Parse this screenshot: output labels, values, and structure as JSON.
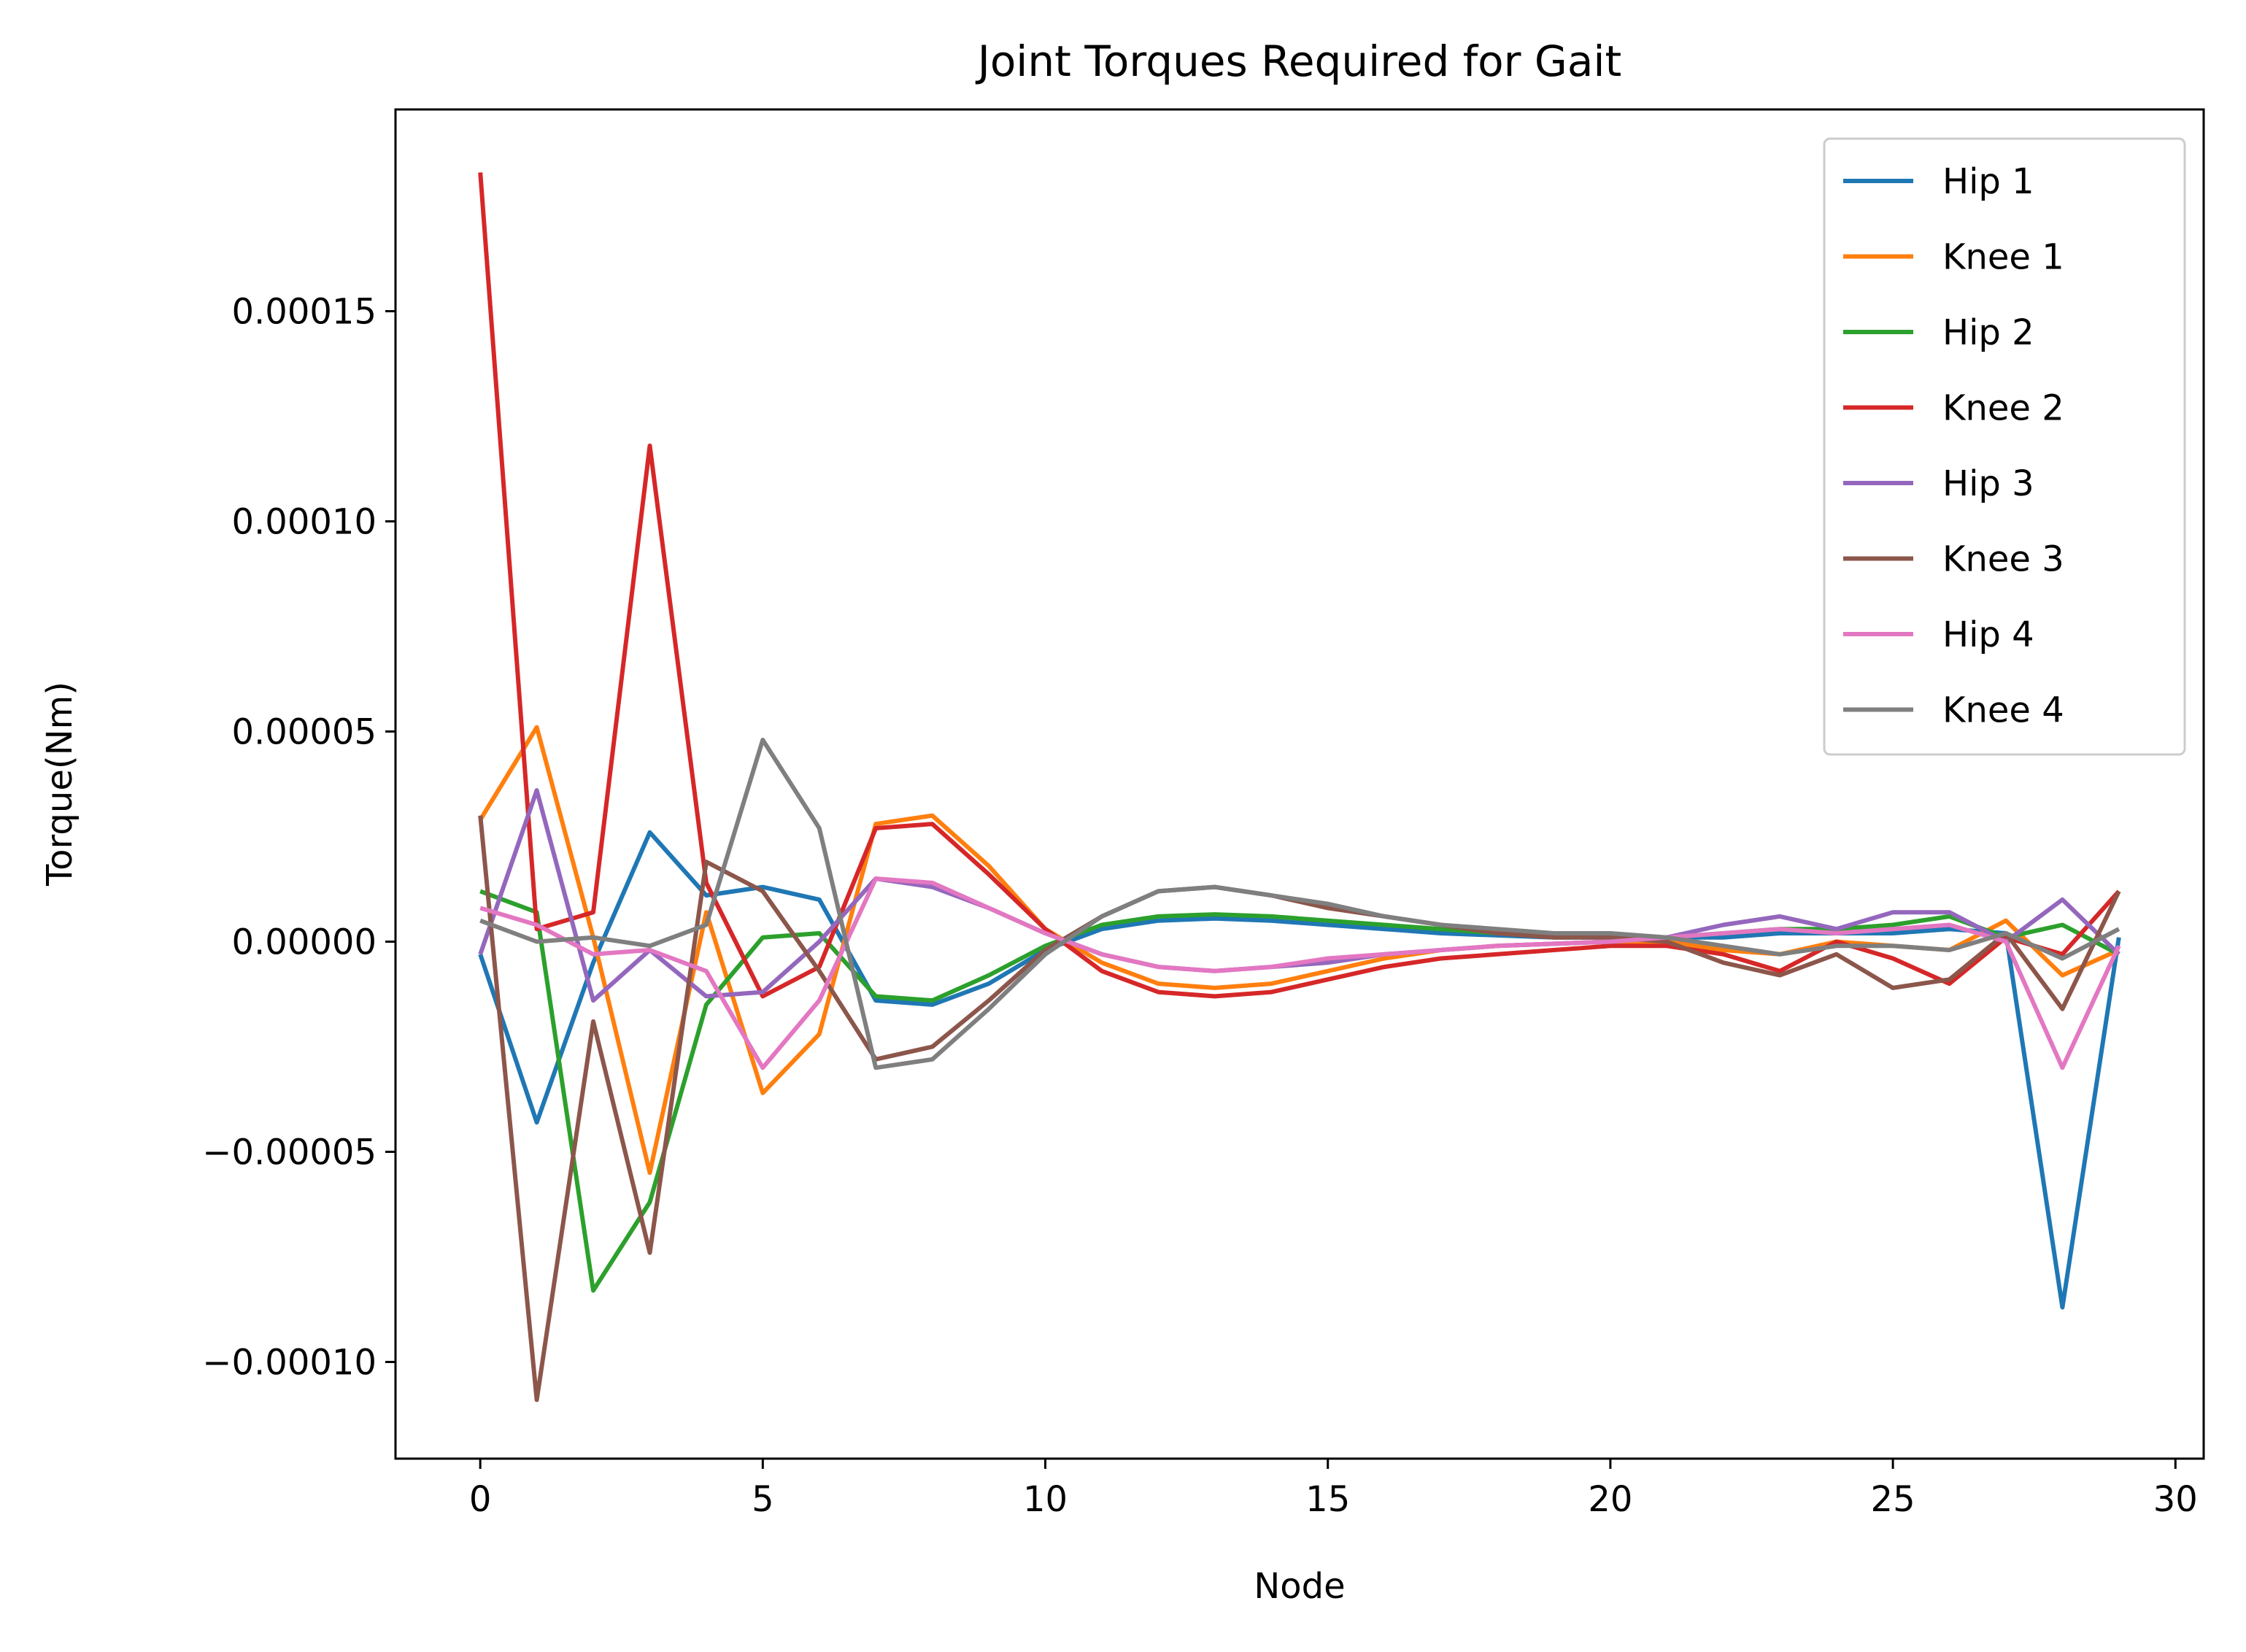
{
  "chart_data": {
    "type": "line",
    "title": "Joint Torques Required for Gait",
    "xlabel": "Node",
    "ylabel": "Torque(Nm)",
    "xlim": [
      -1.5,
      30.5
    ],
    "ylim": [
      -0.000123,
      0.000198
    ],
    "xticks": [
      0,
      5,
      10,
      15,
      20,
      25,
      30
    ],
    "xtick_labels": [
      "0",
      "5",
      "10",
      "15",
      "20",
      "25",
      "30"
    ],
    "yticks": [
      -0.0001,
      -5e-05,
      0,
      5e-05,
      0.0001,
      0.00015
    ],
    "ytick_labels": [
      "−0.00010",
      "−0.00005",
      "0.00000",
      "0.00005",
      "0.00010",
      "0.00015"
    ],
    "grid": false,
    "legend_position": "top-right",
    "x": [
      0,
      1,
      2,
      3,
      4,
      5,
      6,
      7,
      8,
      9,
      10,
      11,
      12,
      13,
      14,
      15,
      16,
      17,
      18,
      19,
      20,
      21,
      22,
      23,
      24,
      25,
      26,
      27,
      28,
      29
    ],
    "series": [
      {
        "name": "Hip 1",
        "color": "#1f77b4",
        "values": [
          -3e-06,
          -4.3e-05,
          -5e-06,
          2.6e-05,
          1.1e-05,
          1.3e-05,
          1e-05,
          -1.4e-05,
          -1.5e-05,
          -1e-05,
          -2e-06,
          3e-06,
          5e-06,
          5.5e-06,
          5e-06,
          4e-06,
          3e-06,
          2e-06,
          1.5e-06,
          1e-06,
          1e-06,
          1e-06,
          1e-06,
          2e-06,
          2e-06,
          2e-06,
          3e-06,
          2e-06,
          -8.7e-05,
          1e-06
        ]
      },
      {
        "name": "Knee 1",
        "color": "#ff7f0e",
        "values": [
          2.9e-05,
          5.1e-05,
          1e-06,
          -5.5e-05,
          7e-06,
          -3.6e-05,
          -2.2e-05,
          2.8e-05,
          3e-05,
          1.8e-05,
          3e-06,
          -5e-06,
          -1e-05,
          -1.1e-05,
          -1e-05,
          -7e-06,
          -4e-06,
          -2e-06,
          -1e-06,
          -5e-07,
          0,
          0,
          -2e-06,
          -3e-06,
          0,
          -1e-06,
          -2e-06,
          5e-06,
          -8e-06,
          -2e-06
        ]
      },
      {
        "name": "Hip 2",
        "color": "#2ca02c",
        "values": [
          1.2e-05,
          7e-06,
          -8.3e-05,
          -6.2e-05,
          -1.5e-05,
          1e-06,
          2e-06,
          -1.3e-05,
          -1.4e-05,
          -8e-06,
          -1e-06,
          4e-06,
          6e-06,
          6.5e-06,
          6e-06,
          5e-06,
          4e-06,
          3e-06,
          2e-06,
          1.5e-06,
          1e-06,
          1e-06,
          2e-06,
          3e-06,
          3e-06,
          4e-06,
          6e-06,
          1e-06,
          4e-06,
          -3e-06
        ]
      },
      {
        "name": "Knee 2",
        "color": "#d62728",
        "values": [
          0.000183,
          3e-06,
          7e-06,
          0.000118,
          1.4e-05,
          -1.3e-05,
          -6e-06,
          2.7e-05,
          2.8e-05,
          1.6e-05,
          3e-06,
          -7e-06,
          -1.2e-05,
          -1.3e-05,
          -1.2e-05,
          -9e-06,
          -6e-06,
          -4e-06,
          -3e-06,
          -2e-06,
          -1e-06,
          -1e-06,
          -3e-06,
          -7e-06,
          0,
          -4e-06,
          -1e-05,
          1e-06,
          -3e-06,
          1.2e-05
        ]
      },
      {
        "name": "Hip 3",
        "color": "#9467bd",
        "values": [
          -3e-06,
          3.6e-05,
          -1.4e-05,
          -2e-06,
          -1.3e-05,
          -1.2e-05,
          0,
          1.5e-05,
          1.3e-05,
          8e-06,
          2e-06,
          -3e-06,
          -6e-06,
          -7e-06,
          -6e-06,
          -5e-06,
          -3e-06,
          -2e-06,
          -1e-06,
          -5e-07,
          0,
          1e-06,
          4e-06,
          6e-06,
          3e-06,
          7e-06,
          7e-06,
          0,
          1e-05,
          -3e-06
        ]
      },
      {
        "name": "Knee 3",
        "color": "#8c564b",
        "values": [
          3e-05,
          -0.000109,
          -1.9e-05,
          -7.4e-05,
          1.9e-05,
          1.2e-05,
          -7e-06,
          -2.8e-05,
          -2.5e-05,
          -1.4e-05,
          -2e-06,
          6e-06,
          1.2e-05,
          1.3e-05,
          1.1e-05,
          8e-06,
          6e-06,
          4e-06,
          2e-06,
          1e-06,
          1e-06,
          0,
          -5e-06,
          -8e-06,
          -3e-06,
          -1.1e-05,
          -9e-06,
          2e-06,
          -1.6e-05,
          1.2e-05
        ]
      },
      {
        "name": "Hip 4",
        "color": "#e377c2",
        "values": [
          8e-06,
          4e-06,
          -3e-06,
          -2e-06,
          -7e-06,
          -3e-05,
          -1.4e-05,
          1.5e-05,
          1.4e-05,
          8e-06,
          2e-06,
          -3e-06,
          -6e-06,
          -7e-06,
          -6e-06,
          -4e-06,
          -3e-06,
          -2e-06,
          -1e-06,
          -5e-07,
          0,
          1e-06,
          2e-06,
          3e-06,
          2e-06,
          3e-06,
          4e-06,
          0,
          -3e-05,
          -1e-06
        ]
      },
      {
        "name": "Knee 4",
        "color": "#7f7f7f",
        "values": [
          5e-06,
          0,
          1e-06,
          -1e-06,
          4e-06,
          4.8e-05,
          2.7e-05,
          -3e-05,
          -2.8e-05,
          -1.6e-05,
          -3e-06,
          6e-06,
          1.2e-05,
          1.3e-05,
          1.1e-05,
          9e-06,
          6e-06,
          4e-06,
          3e-06,
          2e-06,
          2e-06,
          1e-06,
          -1e-06,
          -3e-06,
          -1e-06,
          -1e-06,
          -2e-06,
          2e-06,
          -4e-06,
          3e-06
        ]
      }
    ]
  }
}
